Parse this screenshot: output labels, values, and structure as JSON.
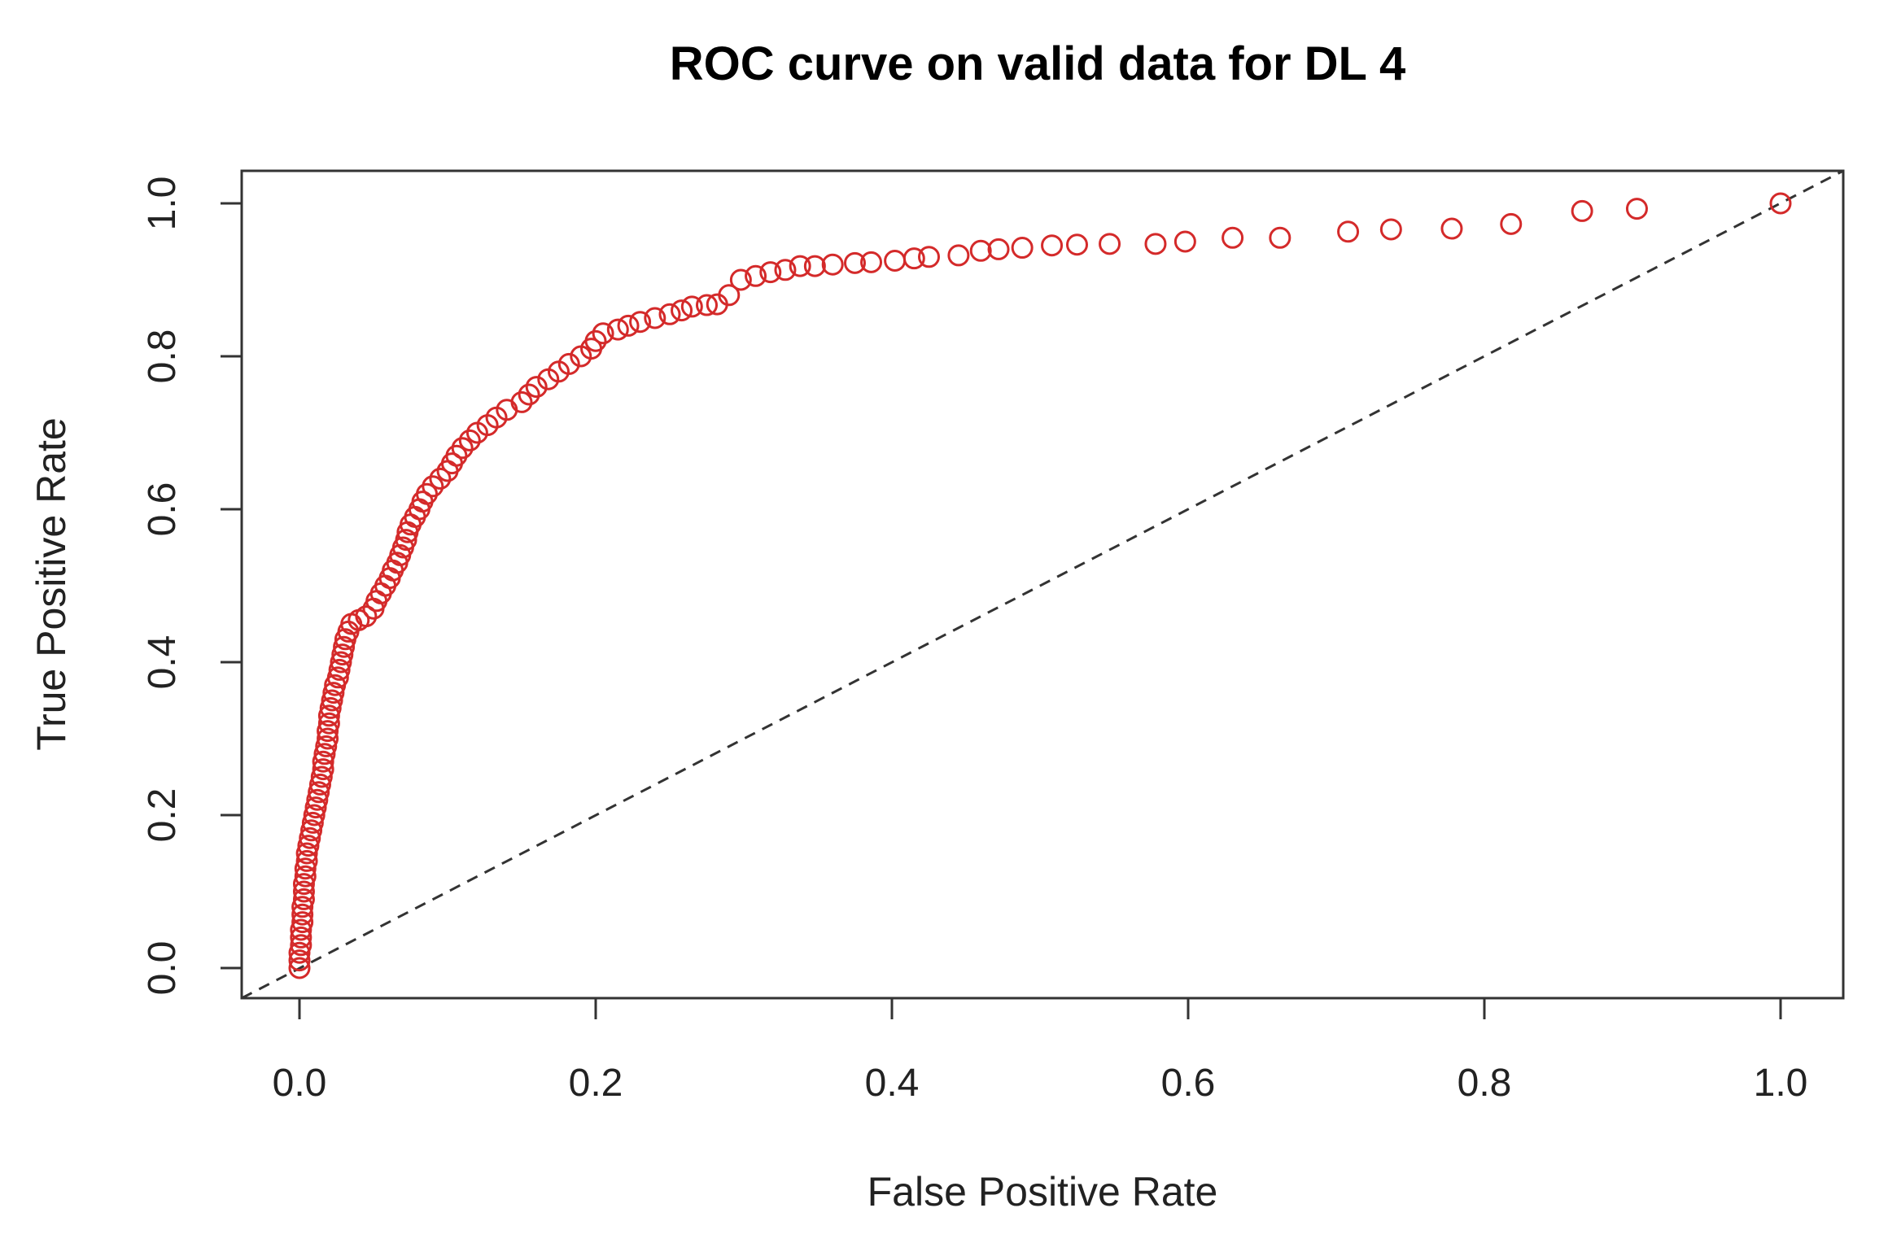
{
  "chart_data": {
    "type": "scatter",
    "title": "ROC curve on valid data for DL 4",
    "xlabel": "False Positive Rate",
    "ylabel": "True Positive Rate",
    "xlim": [
      0,
      1
    ],
    "ylim": [
      0,
      1
    ],
    "x_ticks": [
      "0.0",
      "0.2",
      "0.4",
      "0.6",
      "0.8",
      "1.0"
    ],
    "y_ticks": [
      "0.0",
      "0.2",
      "0.4",
      "0.6",
      "0.8",
      "1.0"
    ],
    "x_tick_values": [
      0,
      0.2,
      0.4,
      0.6,
      0.8,
      1.0
    ],
    "y_tick_values": [
      0,
      0.2,
      0.4,
      0.6,
      0.8,
      1.0
    ],
    "grid": false,
    "point_color": "#d42a2a",
    "reference_line": {
      "style": "dashed",
      "color": "#333333",
      "from": [
        0,
        0
      ],
      "to": [
        1,
        1
      ]
    },
    "series": [
      {
        "name": "ROC",
        "points": [
          [
            0.0,
            0.0
          ],
          [
            0.0,
            0.01
          ],
          [
            0.0,
            0.02
          ],
          [
            0.001,
            0.03
          ],
          [
            0.001,
            0.04
          ],
          [
            0.001,
            0.05
          ],
          [
            0.002,
            0.06
          ],
          [
            0.002,
            0.07
          ],
          [
            0.002,
            0.08
          ],
          [
            0.003,
            0.09
          ],
          [
            0.003,
            0.1
          ],
          [
            0.003,
            0.11
          ],
          [
            0.004,
            0.12
          ],
          [
            0.004,
            0.13
          ],
          [
            0.005,
            0.14
          ],
          [
            0.005,
            0.15
          ],
          [
            0.006,
            0.16
          ],
          [
            0.007,
            0.17
          ],
          [
            0.008,
            0.18
          ],
          [
            0.009,
            0.19
          ],
          [
            0.01,
            0.2
          ],
          [
            0.011,
            0.21
          ],
          [
            0.012,
            0.22
          ],
          [
            0.013,
            0.23
          ],
          [
            0.014,
            0.24
          ],
          [
            0.015,
            0.25
          ],
          [
            0.016,
            0.26
          ],
          [
            0.016,
            0.27
          ],
          [
            0.017,
            0.28
          ],
          [
            0.018,
            0.29
          ],
          [
            0.019,
            0.3
          ],
          [
            0.019,
            0.31
          ],
          [
            0.02,
            0.32
          ],
          [
            0.02,
            0.33
          ],
          [
            0.021,
            0.34
          ],
          [
            0.022,
            0.35
          ],
          [
            0.023,
            0.36
          ],
          [
            0.024,
            0.37
          ],
          [
            0.026,
            0.38
          ],
          [
            0.027,
            0.39
          ],
          [
            0.028,
            0.4
          ],
          [
            0.029,
            0.41
          ],
          [
            0.03,
            0.42
          ],
          [
            0.031,
            0.43
          ],
          [
            0.033,
            0.44
          ],
          [
            0.035,
            0.45
          ],
          [
            0.04,
            0.455
          ],
          [
            0.045,
            0.46
          ],
          [
            0.05,
            0.47
          ],
          [
            0.052,
            0.48
          ],
          [
            0.055,
            0.49
          ],
          [
            0.058,
            0.5
          ],
          [
            0.061,
            0.51
          ],
          [
            0.063,
            0.52
          ],
          [
            0.066,
            0.53
          ],
          [
            0.068,
            0.54
          ],
          [
            0.07,
            0.55
          ],
          [
            0.072,
            0.56
          ],
          [
            0.073,
            0.57
          ],
          [
            0.075,
            0.58
          ],
          [
            0.078,
            0.59
          ],
          [
            0.081,
            0.6
          ],
          [
            0.083,
            0.61
          ],
          [
            0.086,
            0.62
          ],
          [
            0.09,
            0.63
          ],
          [
            0.095,
            0.64
          ],
          [
            0.1,
            0.65
          ],
          [
            0.103,
            0.66
          ],
          [
            0.106,
            0.67
          ],
          [
            0.11,
            0.68
          ],
          [
            0.115,
            0.69
          ],
          [
            0.12,
            0.7
          ],
          [
            0.127,
            0.71
          ],
          [
            0.133,
            0.72
          ],
          [
            0.14,
            0.73
          ],
          [
            0.15,
            0.74
          ],
          [
            0.155,
            0.75
          ],
          [
            0.16,
            0.76
          ],
          [
            0.168,
            0.77
          ],
          [
            0.175,
            0.78
          ],
          [
            0.182,
            0.79
          ],
          [
            0.19,
            0.8
          ],
          [
            0.197,
            0.81
          ],
          [
            0.2,
            0.82
          ],
          [
            0.205,
            0.83
          ],
          [
            0.215,
            0.835
          ],
          [
            0.222,
            0.84
          ],
          [
            0.23,
            0.845
          ],
          [
            0.24,
            0.85
          ],
          [
            0.25,
            0.855
          ],
          [
            0.258,
            0.86
          ],
          [
            0.265,
            0.865
          ],
          [
            0.275,
            0.867
          ],
          [
            0.282,
            0.868
          ],
          [
            0.29,
            0.88
          ],
          [
            0.298,
            0.9
          ],
          [
            0.308,
            0.905
          ],
          [
            0.318,
            0.91
          ],
          [
            0.328,
            0.913
          ],
          [
            0.338,
            0.918
          ],
          [
            0.348,
            0.918
          ],
          [
            0.36,
            0.92
          ],
          [
            0.375,
            0.922
          ],
          [
            0.386,
            0.923
          ],
          [
            0.402,
            0.925
          ],
          [
            0.415,
            0.928
          ],
          [
            0.425,
            0.93
          ],
          [
            0.445,
            0.932
          ],
          [
            0.46,
            0.938
          ],
          [
            0.472,
            0.94
          ],
          [
            0.488,
            0.942
          ],
          [
            0.508,
            0.945
          ],
          [
            0.525,
            0.946
          ],
          [
            0.547,
            0.947
          ],
          [
            0.578,
            0.947
          ],
          [
            0.598,
            0.95
          ],
          [
            0.63,
            0.955
          ],
          [
            0.662,
            0.955
          ],
          [
            0.708,
            0.963
          ],
          [
            0.737,
            0.966
          ],
          [
            0.778,
            0.967
          ],
          [
            0.818,
            0.973
          ],
          [
            0.866,
            0.99
          ],
          [
            0.903,
            0.993
          ],
          [
            1.0,
            1.0
          ]
        ]
      }
    ]
  }
}
